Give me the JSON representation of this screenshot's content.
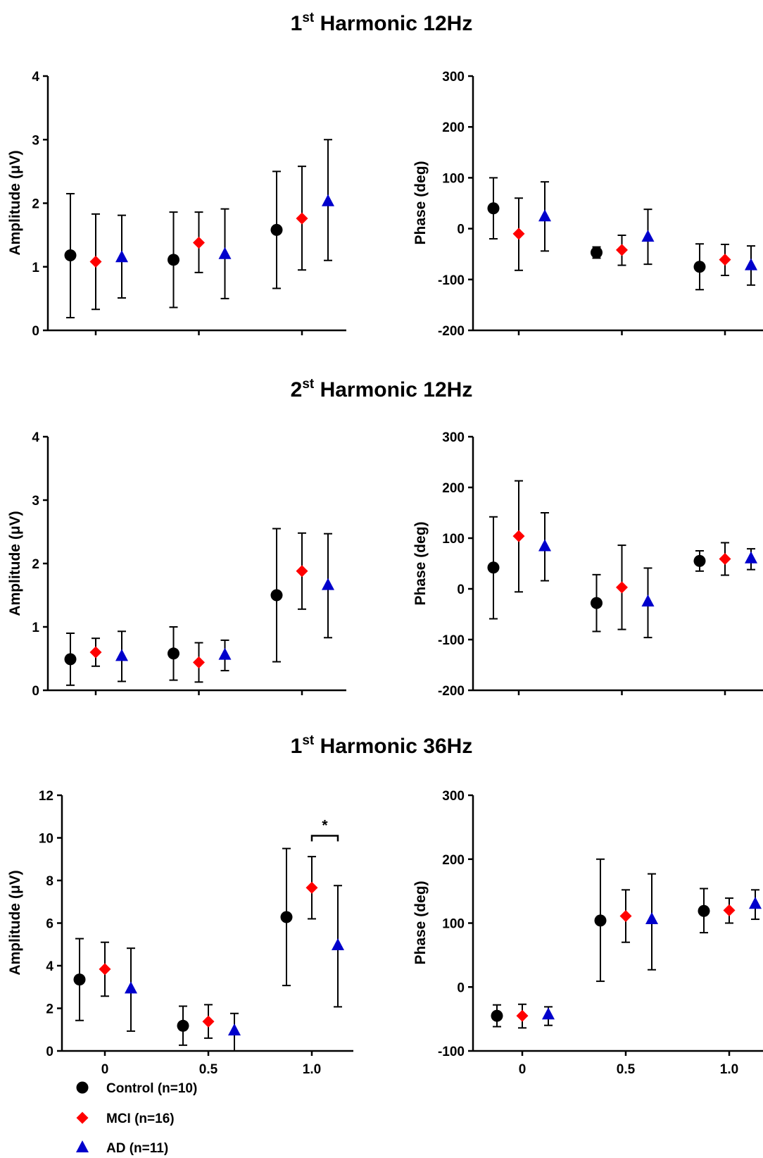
{
  "sections": [
    {
      "title_sup": "st",
      "title_prefix": "1",
      "title_rest": " Harmonic 12Hz"
    },
    {
      "title_sup": "st",
      "title_prefix": "2",
      "title_rest": " Harmonic 12Hz"
    },
    {
      "title_sup": "st",
      "title_prefix": "1",
      "title_rest": " Harmonic 36Hz"
    }
  ],
  "legend": [
    {
      "label": "Control (n=10)",
      "marker": "circle",
      "color": "#000000"
    },
    {
      "label": "MCI (n=16)",
      "marker": "diamond",
      "color": "#ff0000"
    },
    {
      "label": "AD  (n=11)",
      "marker": "triangle",
      "color": "#0000cc"
    }
  ],
  "annotation": {
    "text": "*"
  },
  "chart_data": [
    {
      "type": "scatter",
      "panel": "1st Harmonic 12Hz amplitude",
      "ylabel": "Amplitude (μV)",
      "ylim": [
        0,
        4
      ],
      "yticks": [
        "0",
        "1",
        "2",
        "3",
        "4"
      ],
      "x_ticks": [
        0,
        0.5,
        1.0
      ],
      "x_tick_labels": [],
      "series": [
        {
          "name": "Control (n=10)",
          "x": [
            0,
            0.5,
            1.0
          ],
          "y": [
            1.18,
            1.11,
            1.58
          ],
          "err_low": [
            0.2,
            0.36,
            0.66
          ],
          "err_high": [
            2.15,
            1.86,
            2.5
          ]
        },
        {
          "name": "MCI (n=16)",
          "x": [
            0,
            0.5,
            1.0
          ],
          "y": [
            1.08,
            1.38,
            1.76
          ],
          "err_low": [
            0.33,
            0.91,
            0.95
          ],
          "err_high": [
            1.83,
            1.86,
            2.58
          ]
        },
        {
          "name": "AD  (n=11)",
          "x": [
            0,
            0.5,
            1.0
          ],
          "y": [
            1.15,
            1.2,
            2.03
          ],
          "err_low": [
            0.51,
            0.5,
            1.1
          ],
          "err_high": [
            1.81,
            1.91,
            3.0
          ]
        }
      ]
    },
    {
      "type": "scatter",
      "panel": "1st Harmonic 12Hz phase",
      "ylabel": "Phase (deg)",
      "ylim": [
        -200,
        300
      ],
      "yticks": [
        "-200",
        "-100",
        "0",
        "100",
        "200",
        "300"
      ],
      "x_ticks": [
        0,
        0.5,
        1.0
      ],
      "x_tick_labels": [],
      "series": [
        {
          "name": "Control (n=10)",
          "x": [
            0,
            0.5,
            1.0
          ],
          "y": [
            40,
            -47,
            -75
          ],
          "err_low": [
            -20,
            -58,
            -120
          ],
          "err_high": [
            100,
            -36,
            -30
          ]
        },
        {
          "name": "MCI (n=16)",
          "x": [
            0,
            0.5,
            1.0
          ],
          "y": [
            -10,
            -42,
            -61
          ],
          "err_low": [
            -82,
            -72,
            -92
          ],
          "err_high": [
            60,
            -13,
            -31
          ]
        },
        {
          "name": "AD  (n=11)",
          "x": [
            0,
            0.5,
            1.0
          ],
          "y": [
            24,
            -16,
            -72
          ],
          "err_low": [
            -44,
            -70,
            -111
          ],
          "err_high": [
            92,
            38,
            -34
          ]
        }
      ]
    },
    {
      "type": "scatter",
      "panel": "2st Harmonic 12Hz amplitude",
      "ylabel": "Amplitude (μV)",
      "ylim": [
        0,
        4
      ],
      "yticks": [
        "0",
        "1",
        "2",
        "3",
        "4"
      ],
      "x_ticks": [
        0,
        0.5,
        1.0
      ],
      "x_tick_labels": [],
      "series": [
        {
          "name": "Control (n=10)",
          "x": [
            0,
            0.5,
            1.0
          ],
          "y": [
            0.49,
            0.58,
            1.5
          ],
          "err_low": [
            0.08,
            0.16,
            0.45
          ],
          "err_high": [
            0.9,
            1.0,
            2.55
          ]
        },
        {
          "name": "MCI (n=16)",
          "x": [
            0,
            0.5,
            1.0
          ],
          "y": [
            0.6,
            0.44,
            1.88
          ],
          "err_low": [
            0.38,
            0.13,
            1.28
          ],
          "err_high": [
            0.82,
            0.75,
            2.48
          ]
        },
        {
          "name": "AD  (n=11)",
          "x": [
            0,
            0.5,
            1.0
          ],
          "y": [
            0.54,
            0.56,
            1.66
          ],
          "err_low": [
            0.14,
            0.31,
            0.83
          ],
          "err_high": [
            0.93,
            0.79,
            2.47
          ]
        }
      ]
    },
    {
      "type": "scatter",
      "panel": "2st Harmonic 12Hz phase",
      "ylabel": "Phase (deg)",
      "ylim": [
        -200,
        300
      ],
      "yticks": [
        "-200",
        "-100",
        "0",
        "100",
        "200",
        "300"
      ],
      "x_ticks": [
        0,
        0.5,
        1.0
      ],
      "x_tick_labels": [],
      "series": [
        {
          "name": "Control (n=10)",
          "x": [
            0,
            0.5,
            1.0
          ],
          "y": [
            42,
            -28,
            55
          ],
          "err_low": [
            -59,
            -84,
            35
          ],
          "err_high": [
            142,
            28,
            75
          ]
        },
        {
          "name": "MCI (n=16)",
          "x": [
            0,
            0.5,
            1.0
          ],
          "y": [
            104,
            3,
            59
          ],
          "err_low": [
            -6,
            -80,
            27
          ],
          "err_high": [
            213,
            86,
            91
          ]
        },
        {
          "name": "AD  (n=11)",
          "x": [
            0,
            0.5,
            1.0
          ],
          "y": [
            84,
            -25,
            60
          ],
          "err_low": [
            16,
            -96,
            38
          ],
          "err_high": [
            150,
            41,
            79
          ]
        }
      ]
    },
    {
      "type": "scatter",
      "panel": "1st Harmonic 36Hz amplitude",
      "ylabel": "Amplitude (μV)",
      "ylim": [
        0,
        12
      ],
      "yticks": [
        "0",
        "2",
        "4",
        "6",
        "8",
        "10",
        "12"
      ],
      "x_ticks": [
        0,
        0.5,
        1.0
      ],
      "x_tick_labels": [
        "0",
        "0.5",
        "1.0"
      ],
      "series": [
        {
          "name": "Control (n=10)",
          "x": [
            0,
            0.5,
            1.0
          ],
          "y": [
            3.35,
            1.18,
            6.28
          ],
          "err_low": [
            1.43,
            0.27,
            3.07
          ],
          "err_high": [
            5.27,
            2.1,
            9.5
          ]
        },
        {
          "name": "MCI (n=16)",
          "x": [
            0,
            0.5,
            1.0
          ],
          "y": [
            3.84,
            1.38,
            7.66
          ],
          "err_low": [
            2.57,
            0.6,
            6.2
          ],
          "err_high": [
            5.1,
            2.17,
            9.12
          ]
        },
        {
          "name": "AD  (n=11)",
          "x": [
            0,
            0.5,
            1.0
          ],
          "y": [
            2.93,
            0.96,
            4.96
          ],
          "err_low": [
            0.93,
            0.0,
            2.07
          ],
          "err_high": [
            4.82,
            1.76,
            7.76
          ]
        }
      ]
    },
    {
      "type": "scatter",
      "panel": "1st Harmonic 36Hz phase",
      "ylabel": "Phase (deg)",
      "ylim": [
        -100,
        300
      ],
      "yticks": [
        "-100",
        "0",
        "100",
        "200",
        "300"
      ],
      "x_ticks": [
        0,
        0.5,
        1.0
      ],
      "x_tick_labels": [
        "0",
        "0.5",
        "1.0"
      ],
      "series": [
        {
          "name": "Control (n=10)",
          "x": [
            0,
            0.5,
            1.0
          ],
          "y": [
            -45,
            104,
            119
          ],
          "err_low": [
            -62,
            9,
            85
          ],
          "err_high": [
            -28,
            200,
            154
          ]
        },
        {
          "name": "MCI (n=16)",
          "x": [
            0,
            0.5,
            1.0
          ],
          "y": [
            -45,
            111,
            120
          ],
          "err_low": [
            -64,
            70,
            100
          ],
          "err_high": [
            -27,
            152,
            139
          ]
        },
        {
          "name": "AD  (n=11)",
          "x": [
            0,
            0.5,
            1.0
          ],
          "y": [
            -43,
            106,
            130
          ],
          "err_low": [
            -60,
            27,
            106
          ],
          "err_high": [
            -31,
            177,
            152
          ]
        }
      ]
    }
  ]
}
